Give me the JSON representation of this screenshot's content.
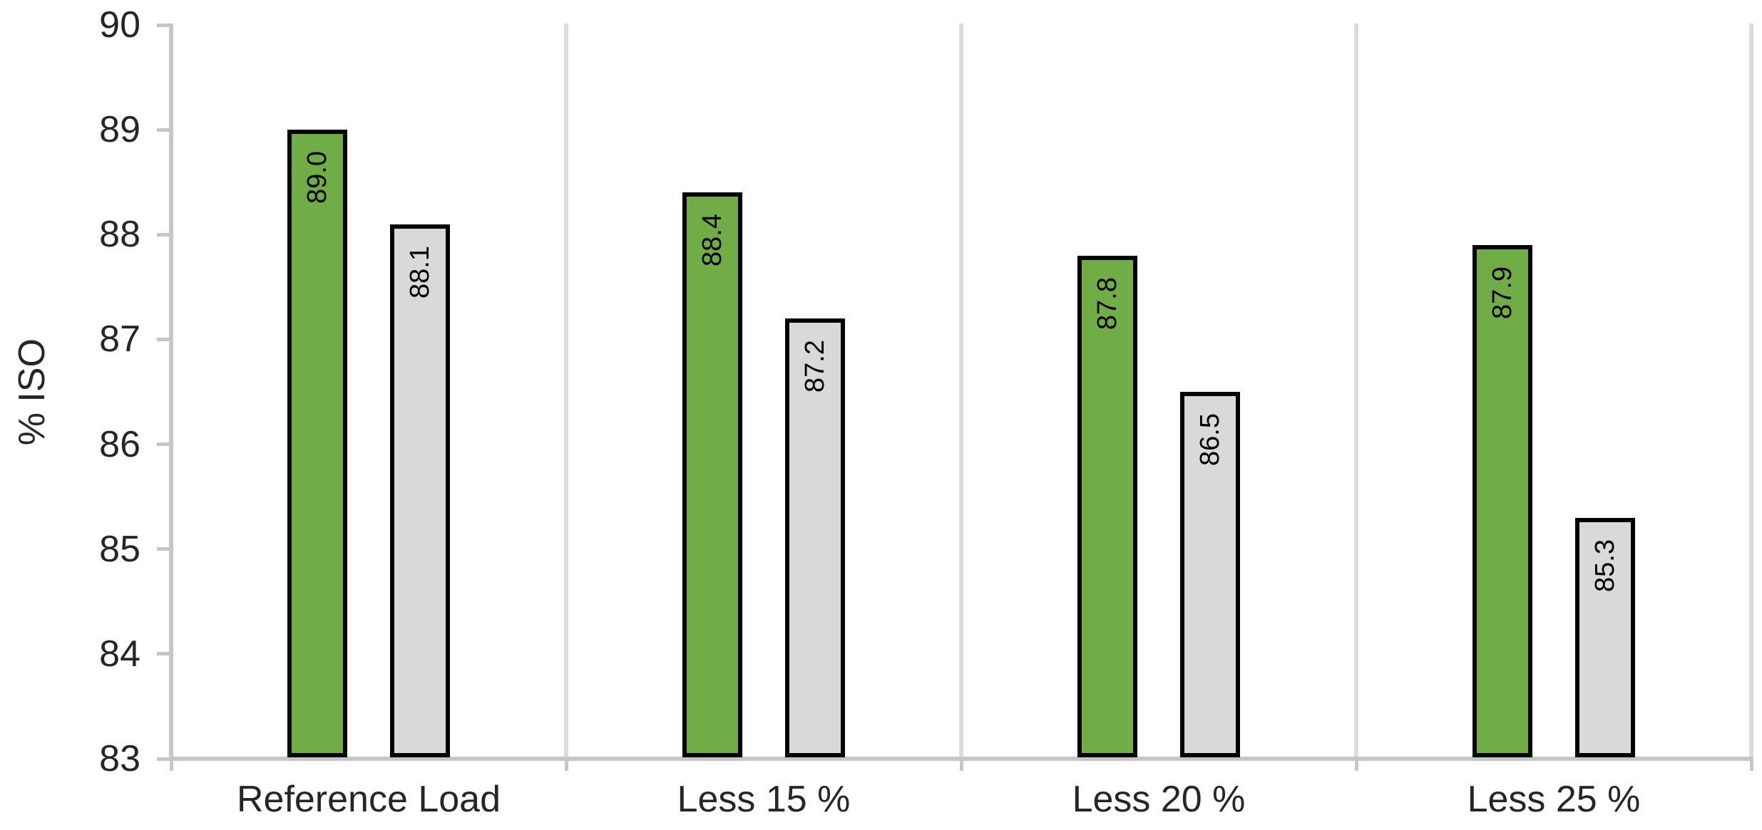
{
  "chart_data": {
    "type": "bar",
    "title": "",
    "xlabel": "",
    "ylabel": "% ISO",
    "categories": [
      "Reference Load",
      "Less 15 %",
      "Less 20 %",
      "Less 25 %"
    ],
    "series": [
      {
        "name": "green",
        "color": "#70AD47",
        "values": [
          89.0,
          88.4,
          87.8,
          87.9
        ],
        "data_labels": [
          "89.0",
          "88.4",
          "87.8",
          "87.9"
        ]
      },
      {
        "name": "gray",
        "color": "#D9D9D9",
        "values": [
          88.1,
          87.2,
          86.5,
          85.3
        ],
        "data_labels": [
          "88.1",
          "87.2",
          "86.5",
          "85.3"
        ]
      }
    ],
    "ylim": [
      83,
      90
    ],
    "yticks": [
      "90",
      "89",
      "88",
      "87",
      "86",
      "85",
      "84",
      "83"
    ],
    "ytick_values": [
      90,
      89,
      88,
      87,
      86,
      85,
      84,
      83
    ],
    "legend_position": "none",
    "grid": "vertical-category-separators",
    "data_label_position": "inside-end",
    "data_label_rotation": -90,
    "colors": {
      "bar_border": "#000000",
      "axis_line": "#C6C6C6",
      "separator_line": "#DCDCDC",
      "tick_label_text": "#262626",
      "data_label_text": "#000000",
      "background": "#FFFFFF"
    }
  }
}
